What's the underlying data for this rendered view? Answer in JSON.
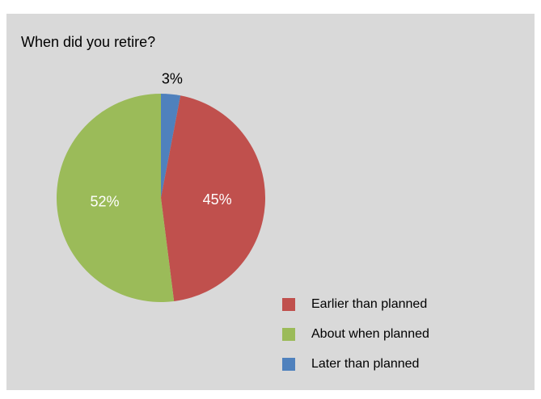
{
  "chart_data": {
    "type": "pie",
    "title": "When did you retire?",
    "slices": [
      {
        "label": "Later than planned",
        "value": 3,
        "display": "3%",
        "color": "#4f81bd",
        "label_color": "#000000"
      },
      {
        "label": "Earlier than planned",
        "value": 45,
        "display": "45%",
        "color": "#c0504d",
        "label_color": "#ffffff"
      },
      {
        "label": "About when planned",
        "value": 52,
        "display": "52%",
        "color": "#9bbb59",
        "label_color": "#ffffff"
      }
    ],
    "legend": {
      "placement": "bottom-right",
      "items": [
        {
          "label": "Earlier than planned",
          "color": "#c0504d"
        },
        {
          "label": "About when planned",
          "color": "#9bbb59"
        },
        {
          "label": "Later than planned",
          "color": "#4f81bd"
        }
      ]
    }
  }
}
